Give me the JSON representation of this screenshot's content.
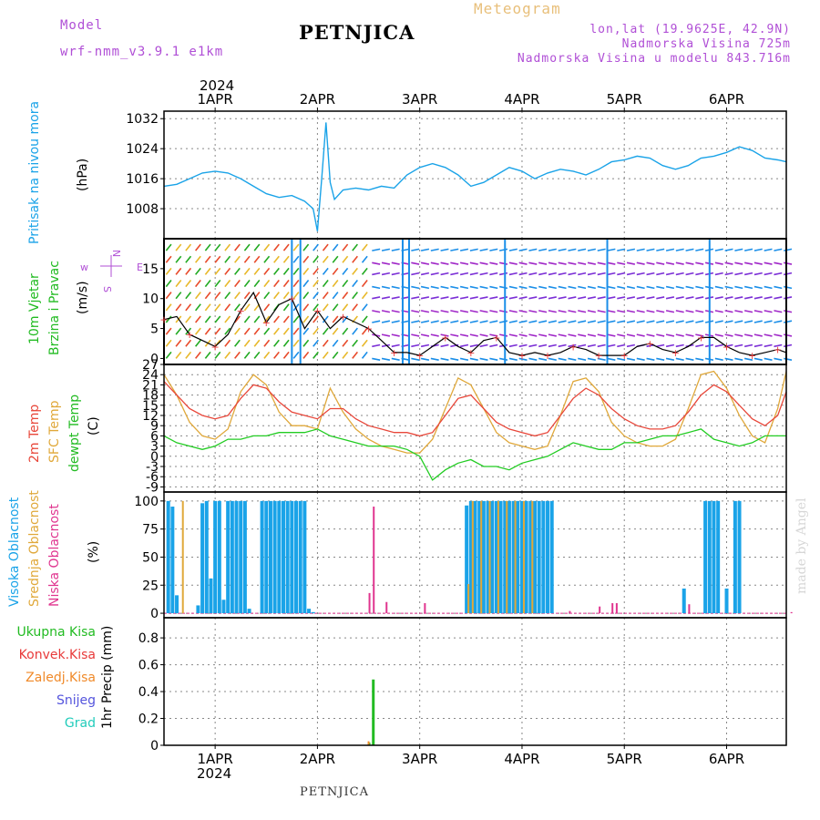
{
  "header": {
    "model_label": "Model",
    "model_name": "wrf-nmm_v3.9.1 e1km",
    "station": "PETNJICA",
    "title": "Meteogram",
    "lonlat": "lon,lat (19.9625E, 42.9N)",
    "elevation": "Nadmorska Visina 725m",
    "model_elevation": "Nadmorska Visina u modelu 843.716m"
  },
  "top_year": "2024",
  "bottom_year": "2024",
  "footer_station": "PETNJICA",
  "watermark": "made by Angel",
  "colors": {
    "pressure": "#1aa3e8",
    "t2m": "#e8473a",
    "sfc": "#e0a83a",
    "dewpt": "#22cc22",
    "high_cloud": "#1aa3e8",
    "mid_cloud": "#e0a83a",
    "low_cloud": "#e0358f",
    "precip_total": "#22bb22",
    "precip_conv": "#e83a3a",
    "precip_frozen": "#f08a2a",
    "snow": "#5555dd",
    "graupel": "#22ccbb",
    "label_purple": "#b04fd6",
    "grid": "#888888"
  },
  "chart_data": {
    "type": "line",
    "x_unit": "hours from 2024-03-31 12:00 UTC",
    "x_ticks": [
      "1APR",
      "2APR",
      "3APR",
      "4APR",
      "5APR",
      "6APR"
    ],
    "x_range": [
      0,
      146
    ],
    "pressure": {
      "ylabel": "(hPa)",
      "title": "Pritisak na nivou mora",
      "yticks": [
        "1032",
        "1024",
        "1016",
        "1008"
      ],
      "ylim": [
        1000,
        1034
      ],
      "x": [
        0,
        3,
        6,
        9,
        12,
        15,
        18,
        21,
        24,
        27,
        30,
        33,
        35,
        36,
        37,
        38,
        39,
        40,
        42,
        45,
        48,
        51,
        54,
        57,
        60,
        63,
        66,
        69,
        72,
        75,
        78,
        81,
        84,
        87,
        90,
        93,
        96,
        99,
        102,
        105,
        108,
        111,
        114,
        117,
        120,
        123,
        126,
        129,
        132,
        135,
        138,
        141,
        144,
        146
      ],
      "values": [
        1014,
        1014.5,
        1016,
        1017.5,
        1018,
        1017.5,
        1016,
        1014,
        1012,
        1011,
        1011.5,
        1010,
        1008,
        1002,
        1016,
        1031,
        1015,
        1010.5,
        1013,
        1013.5,
        1013,
        1014,
        1013.5,
        1017,
        1019,
        1020,
        1019,
        1017,
        1014,
        1015,
        1017,
        1019,
        1018,
        1016,
        1017.5,
        1018.5,
        1018,
        1017,
        1018.5,
        1020.5,
        1021,
        1022,
        1021.5,
        1019.5,
        1018.5,
        1019.5,
        1021.5,
        1022,
        1023,
        1024.5,
        1023.5,
        1021.5,
        1021,
        1020.5
      ]
    },
    "wind": {
      "ylabel": "(m/s)",
      "title_lines": [
        "10m Vjetar",
        "Brzina i Pravac"
      ],
      "compass": [
        "w",
        "E",
        "N",
        "S"
      ],
      "yticks": [
        "15",
        "10",
        "5",
        "0"
      ],
      "ylim": [
        -1,
        20
      ],
      "speed_x": [
        0,
        3,
        6,
        9,
        12,
        15,
        18,
        21,
        24,
        27,
        30,
        33,
        36,
        39,
        42,
        45,
        48,
        51,
        54,
        57,
        60,
        63,
        66,
        69,
        72,
        75,
        78,
        81,
        84,
        87,
        90,
        93,
        96,
        99,
        102,
        105,
        108,
        111,
        114,
        117,
        120,
        123,
        126,
        129,
        132,
        135,
        138,
        141,
        144,
        146
      ],
      "speed": [
        6.5,
        7,
        4,
        3,
        2,
        4,
        8,
        11,
        6,
        9,
        10,
        5,
        8,
        5,
        7,
        6,
        5,
        3,
        1,
        1,
        0.5,
        2,
        3.5,
        2,
        1,
        3,
        3.5,
        1,
        0.5,
        1,
        0.5,
        1,
        2,
        1.5,
        0.5,
        0.5,
        0.5,
        2,
        2.5,
        1.5,
        1,
        2,
        3.5,
        3.5,
        2,
        1,
        0.5,
        1,
        1.5,
        1
      ]
    },
    "temperature": {
      "ylabel": "(C)",
      "title_lines": [
        "2m Temp",
        "SFC Temp",
        "dewpt Temp"
      ],
      "yticks": [
        "27",
        "24",
        "21",
        "18",
        "15",
        "12",
        "9",
        "6",
        "3",
        "0",
        "-3",
        "-6",
        "-9"
      ],
      "ylim": [
        -10.5,
        27
      ],
      "x": [
        0,
        3,
        6,
        9,
        12,
        15,
        18,
        21,
        24,
        27,
        30,
        33,
        36,
        39,
        42,
        45,
        48,
        51,
        54,
        57,
        60,
        63,
        66,
        69,
        72,
        75,
        78,
        81,
        84,
        87,
        90,
        93,
        96,
        99,
        102,
        105,
        108,
        111,
        114,
        117,
        120,
        123,
        126,
        129,
        132,
        135,
        138,
        141,
        144,
        146
      ],
      "t2m": [
        22,
        18,
        14,
        12,
        11,
        12,
        17,
        21,
        20,
        16,
        13,
        12,
        11,
        14,
        14,
        11,
        9,
        8,
        7,
        7,
        6,
        7,
        12,
        17,
        18,
        14,
        10,
        8,
        7,
        6,
        7,
        12,
        17,
        20,
        18,
        14,
        11,
        9,
        8,
        8,
        9,
        13,
        18,
        21,
        19,
        15,
        11,
        9,
        12,
        19
      ],
      "sfc": [
        24,
        18,
        10,
        6,
        5,
        8,
        19,
        24,
        21,
        13,
        9,
        9,
        8,
        20,
        13,
        8,
        5,
        3,
        2,
        1,
        1,
        5,
        14,
        23,
        21,
        14,
        7,
        4,
        3,
        2,
        3,
        12,
        22,
        23,
        19,
        10,
        6,
        4,
        3,
        3,
        5,
        14,
        24,
        25,
        20,
        12,
        6,
        4,
        14,
        25
      ],
      "dewpt": [
        6,
        4,
        3,
        2,
        3,
        5,
        5,
        6,
        6,
        7,
        7,
        7,
        8,
        6,
        5,
        4,
        3,
        3,
        3,
        2,
        0,
        -7,
        -4,
        -2,
        -1,
        -3,
        -3,
        -4,
        -2,
        -1,
        0,
        2,
        4,
        3,
        2,
        2,
        4,
        4,
        5,
        6,
        6,
        7,
        8,
        5,
        4,
        3,
        4,
        6,
        6,
        6
      ]
    },
    "clouds": {
      "ylabel": "(%)",
      "title_lines": [
        "Visoka Oblacnost",
        "Srednja Oblacnost",
        "Niska Oblacnost"
      ],
      "yticks": [
        "100",
        "75",
        "50",
        "25",
        "0"
      ],
      "ylim": [
        -4,
        108
      ],
      "high": [
        [
          1,
          100
        ],
        [
          2,
          95
        ],
        [
          3,
          16
        ],
        [
          8,
          7
        ],
        [
          9,
          98
        ],
        [
          10,
          100
        ],
        [
          11,
          31
        ],
        [
          12,
          100
        ],
        [
          13,
          100
        ],
        [
          14,
          12
        ],
        [
          15,
          100
        ],
        [
          16,
          100
        ],
        [
          17,
          100
        ],
        [
          18,
          100
        ],
        [
          19,
          100
        ],
        [
          20,
          4
        ],
        [
          23,
          100
        ],
        [
          24,
          100
        ],
        [
          25,
          100
        ],
        [
          26,
          100
        ],
        [
          27,
          100
        ],
        [
          28,
          100
        ],
        [
          29,
          100
        ],
        [
          30,
          100
        ],
        [
          31,
          100
        ],
        [
          32,
          100
        ],
        [
          33,
          100
        ],
        [
          34,
          4
        ],
        [
          35,
          1
        ],
        [
          71,
          96
        ],
        [
          72,
          100
        ],
        [
          73,
          100
        ],
        [
          74,
          100
        ],
        [
          75,
          100
        ],
        [
          76,
          100
        ],
        [
          77,
          100
        ],
        [
          78,
          100
        ],
        [
          79,
          100
        ],
        [
          80,
          100
        ],
        [
          81,
          100
        ],
        [
          82,
          100
        ],
        [
          83,
          100
        ],
        [
          84,
          100
        ],
        [
          85,
          100
        ],
        [
          86,
          100
        ],
        [
          87,
          100
        ],
        [
          88,
          100
        ],
        [
          89,
          100
        ],
        [
          90,
          100
        ],
        [
          91,
          100
        ],
        [
          122,
          22
        ],
        [
          127,
          100
        ],
        [
          128,
          100
        ],
        [
          129,
          100
        ],
        [
          130,
          100
        ],
        [
          132,
          22
        ],
        [
          134,
          100
        ],
        [
          135,
          100
        ]
      ],
      "mid": [
        [
          4,
          100
        ],
        [
          71,
          26
        ],
        [
          72,
          100
        ],
        [
          74,
          100
        ],
        [
          76,
          100
        ],
        [
          78,
          100
        ],
        [
          80,
          100
        ],
        [
          82,
          100
        ],
        [
          84,
          100
        ],
        [
          86,
          100
        ]
      ],
      "low": [
        [
          48,
          18
        ],
        [
          49,
          95
        ],
        [
          52,
          10
        ],
        [
          61,
          9
        ],
        [
          95,
          2
        ],
        [
          102,
          6
        ],
        [
          105,
          9
        ],
        [
          106,
          9
        ],
        [
          123,
          8
        ],
        [
          147,
          1
        ]
      ]
    },
    "precip": {
      "ylabel": "1hr Precip (mm)",
      "legend": [
        "Ukupna Kisa",
        "Konvek.Kisa",
        "Zaledj.Kisa",
        "Snijeg",
        "Grad"
      ],
      "yticks": [
        "0.8",
        "0.6",
        "0.4",
        "0.2",
        "0"
      ],
      "ylim": [
        0,
        0.95
      ],
      "total": [
        [
          48,
          0.02
        ],
        [
          49,
          0.49
        ]
      ],
      "frozen": [
        [
          48,
          0.03
        ]
      ]
    }
  }
}
